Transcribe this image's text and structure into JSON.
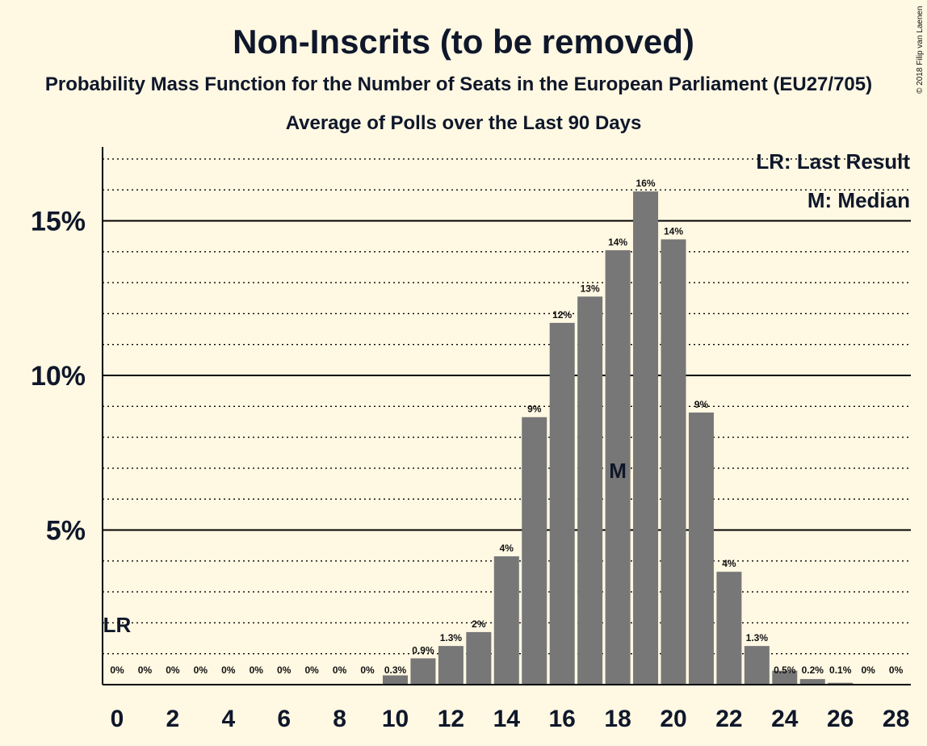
{
  "chart_data": {
    "type": "bar",
    "title": "Non-Inscrits (to be removed)",
    "subtitle": "Probability Mass Function for the Number of Seats in the European Parliament (EU27/705)",
    "subtitle2": "Average of Polls over the Last 90 Days",
    "copyright": "© 2018 Filip van Laenen",
    "x": [
      0,
      1,
      2,
      3,
      4,
      5,
      6,
      7,
      8,
      9,
      10,
      11,
      12,
      13,
      14,
      15,
      16,
      17,
      18,
      19,
      20,
      21,
      22,
      23,
      24,
      25,
      26,
      27,
      28
    ],
    "values": [
      0,
      0,
      0,
      0,
      0,
      0,
      0,
      0,
      0,
      0,
      0.3,
      0.85,
      1.25,
      1.7,
      4.15,
      8.65,
      11.7,
      12.55,
      14.05,
      15.95,
      14.4,
      8.8,
      3.65,
      1.25,
      0.45,
      0.18,
      0.06,
      0,
      0
    ],
    "data_labels": [
      "0%",
      "0%",
      "0%",
      "0%",
      "0%",
      "0%",
      "0%",
      "0%",
      "0%",
      "0%",
      "0.3%",
      "0.9%",
      "1.3%",
      "2%",
      "4%",
      "9%",
      "12%",
      "13%",
      "14%",
      "16%",
      "14%",
      "9%",
      "4%",
      "1.3%",
      "0.5%",
      "0.2%",
      "0.1%",
      "0%",
      "0%"
    ],
    "xticks": [
      "0",
      "2",
      "4",
      "6",
      "8",
      "10",
      "12",
      "14",
      "16",
      "18",
      "20",
      "22",
      "24",
      "26",
      "28"
    ],
    "yticks": [
      {
        "value": 5,
        "label": "5%"
      },
      {
        "value": 10,
        "label": "10%"
      },
      {
        "value": 15,
        "label": "15%"
      }
    ],
    "ylim": [
      0,
      17.4
    ],
    "last_result": {
      "seats": 0,
      "label": "LR"
    },
    "median": {
      "seats": 18,
      "label": "M"
    },
    "legend": [
      "LR: Last Result",
      "M: Median"
    ],
    "colors": {
      "bar": "#777777",
      "background": "#fff8e3",
      "axis": "#000000",
      "median_label": "#ffffff"
    }
  }
}
